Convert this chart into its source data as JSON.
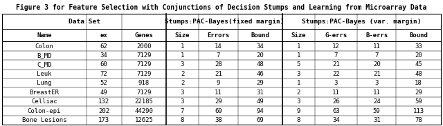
{
  "title": "Figure 3 for Feature Selection with Conjunctions of Decision Stumps and Learning from Microarray Data",
  "group_labels": [
    "Data Set",
    "Stumps:PAC-Bayes(fixed margin)",
    "Stumps:PAC-Bayes (var. margin)"
  ],
  "group_spans": [
    3,
    3,
    4
  ],
  "headers": [
    "Name",
    "ex",
    "Genes",
    "Size",
    "Errors",
    "Bound",
    "Size",
    "G-errs",
    "B-errs",
    "Bound"
  ],
  "rows": [
    [
      "Colon",
      "62",
      "2000",
      "1",
      "14",
      "34",
      "1",
      "12",
      "11",
      "33"
    ],
    [
      "B_MD",
      "34",
      "7129",
      "1",
      "7",
      "20",
      "1",
      "7",
      "7",
      "20"
    ],
    [
      "C_MD",
      "60",
      "7129",
      "3",
      "28",
      "48",
      "5",
      "21",
      "20",
      "45"
    ],
    [
      "Leuk",
      "72",
      "7129",
      "2",
      "21",
      "46",
      "3",
      "22",
      "21",
      "48"
    ],
    [
      "Lung",
      "52",
      "918",
      "2",
      "9",
      "29",
      "1",
      "3",
      "3",
      "18"
    ],
    [
      "BreastER",
      "49",
      "7129",
      "3",
      "11",
      "31",
      "2",
      "11",
      "11",
      "29"
    ],
    [
      "Celliac",
      "132",
      "22185",
      "3",
      "29",
      "49",
      "3",
      "26",
      "24",
      "59"
    ],
    [
      "Colon-epi",
      "202",
      "44290",
      "7",
      "69",
      "94",
      "9",
      "63",
      "59",
      "113"
    ],
    [
      "Bone Lesions",
      "173",
      "12625",
      "8",
      "38",
      "69",
      "8",
      "34",
      "31",
      "78"
    ]
  ],
  "col_widths_norm": [
    1.55,
    0.65,
    0.82,
    0.6,
    0.72,
    0.82,
    0.6,
    0.78,
    0.72,
    0.82
  ],
  "group_dividers": [
    3,
    6
  ],
  "background": "#ffffff",
  "font_size": 6.5,
  "header_font_size": 6.5,
  "group_font_size": 6.8,
  "title_font_size": 7.0
}
